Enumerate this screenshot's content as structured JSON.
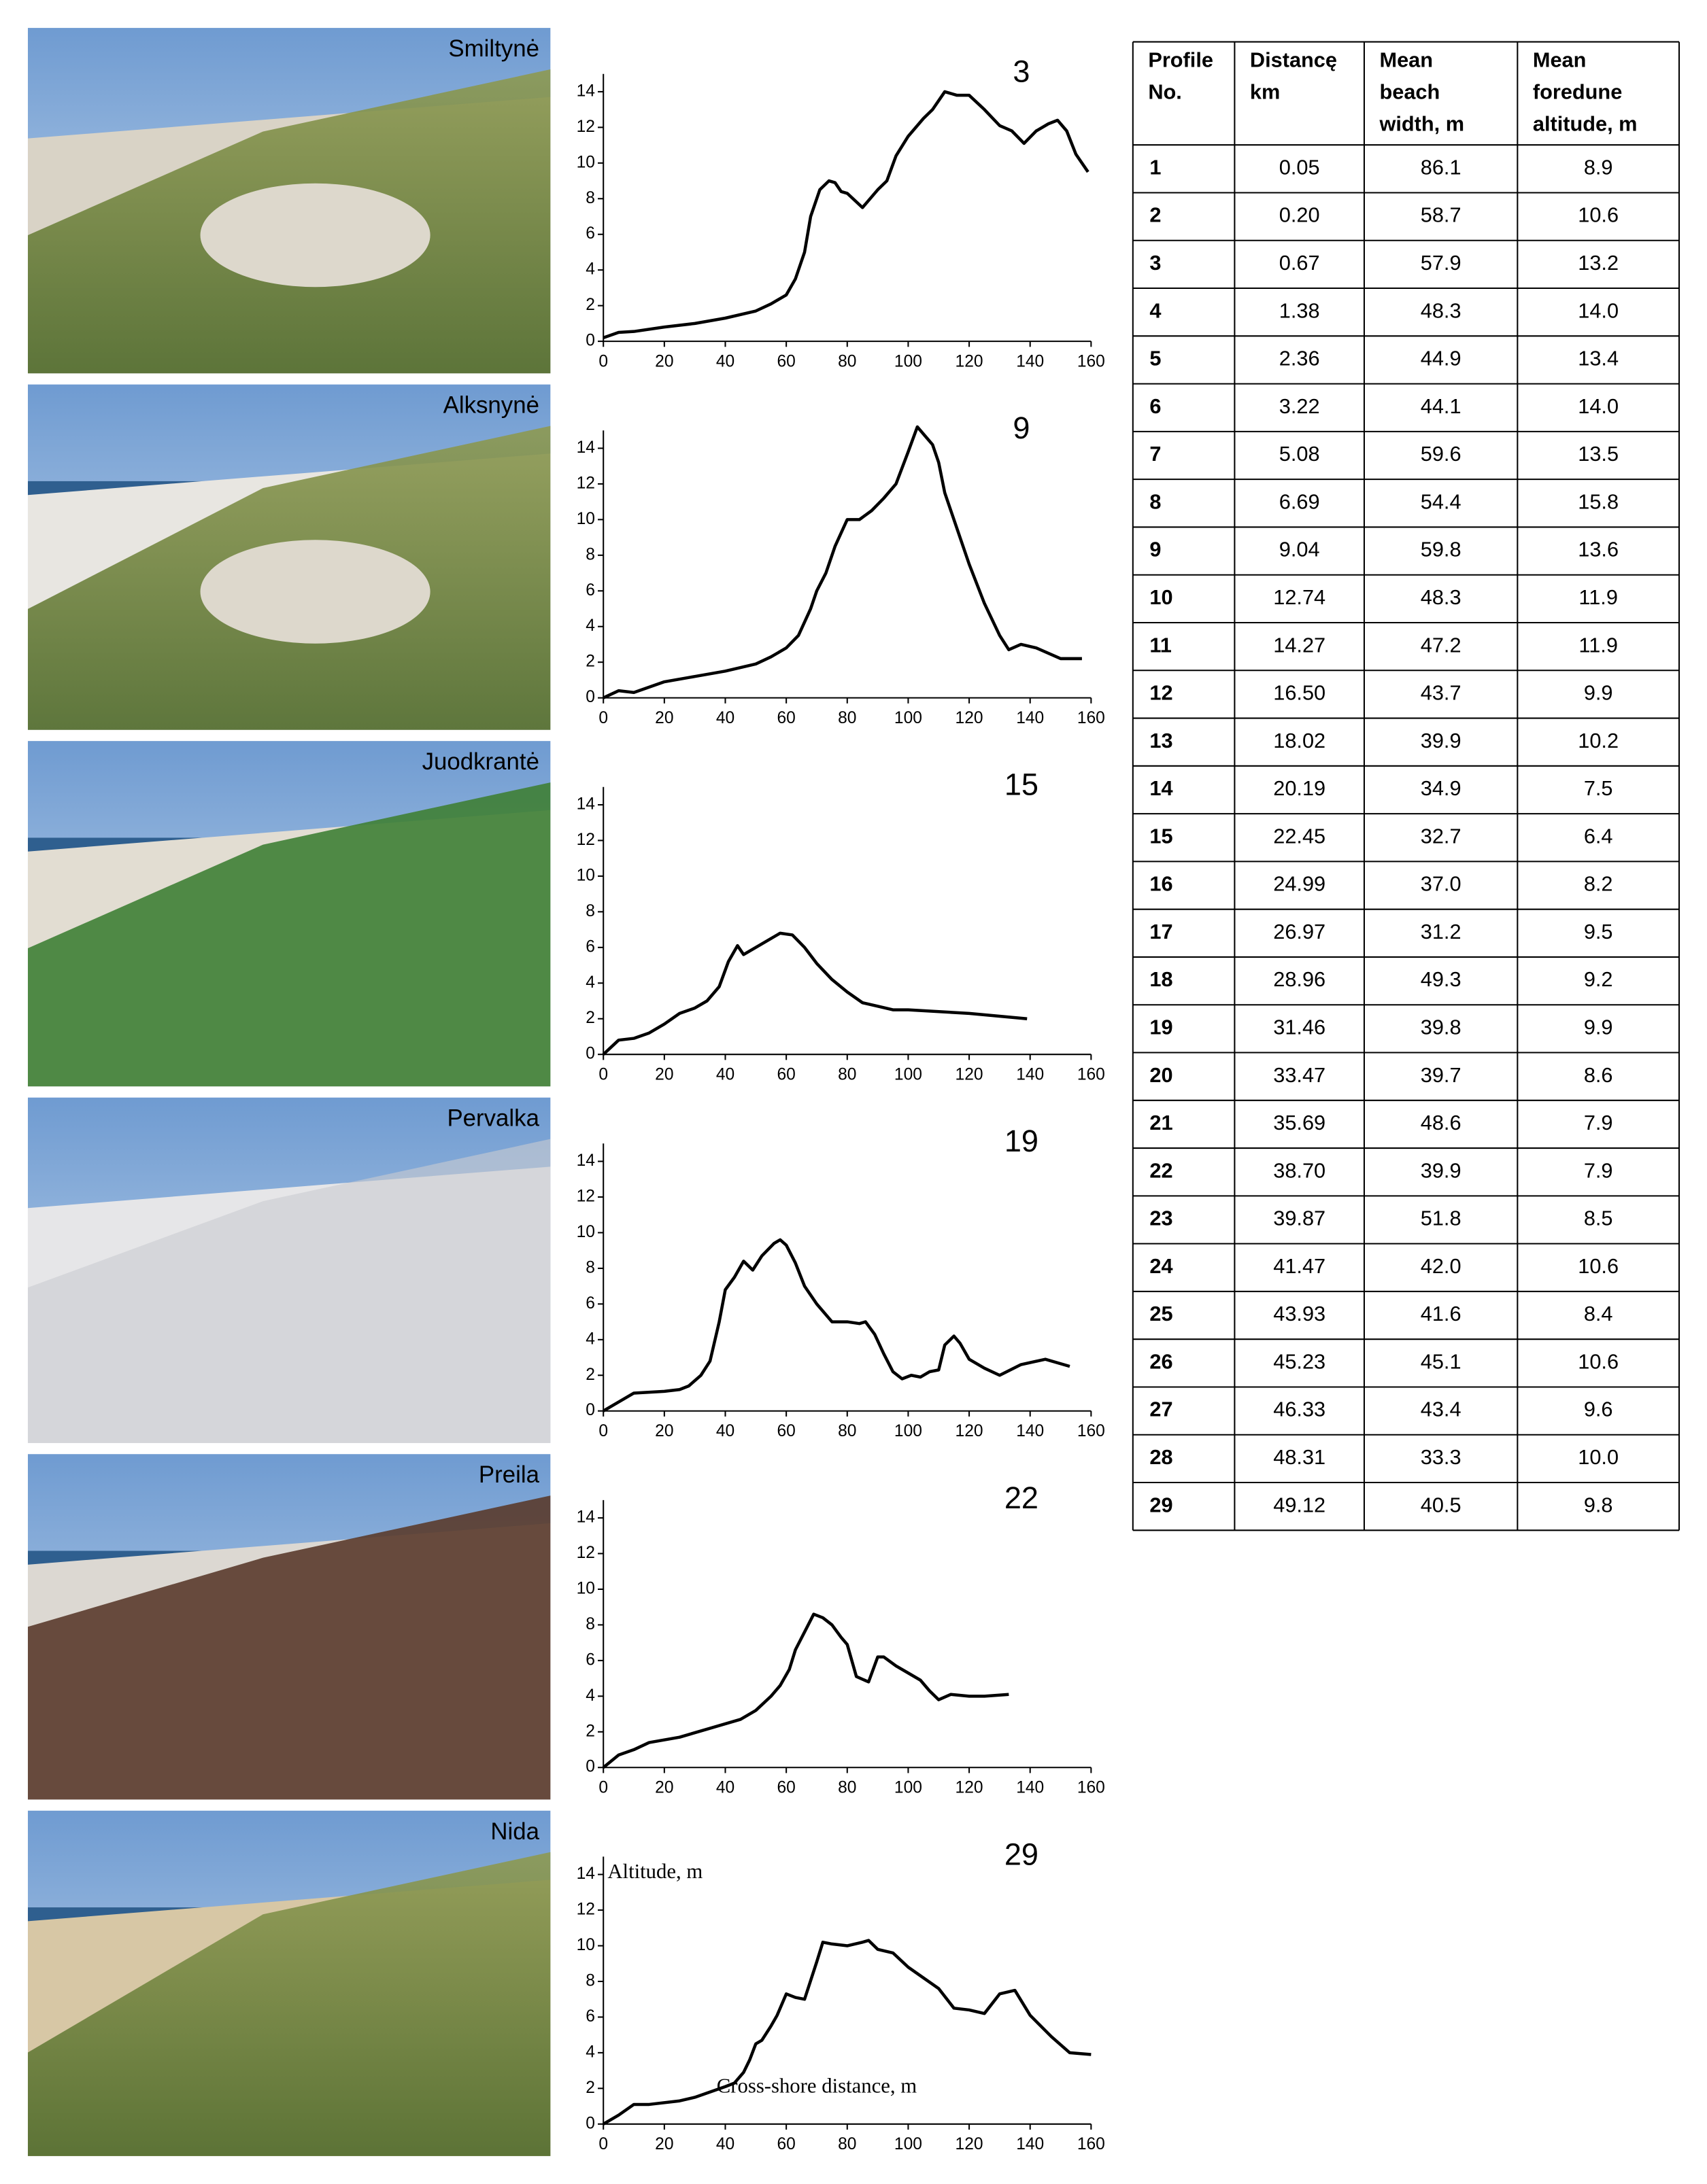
{
  "photos": [
    "Smiltynė",
    "Alksnynė",
    "Juodkrantė",
    "Pervalka",
    "Preila",
    "Nida"
  ],
  "chart_data": [
    {
      "type": "line",
      "title": "3",
      "color": "#000000",
      "xlim": [
        0,
        160
      ],
      "ylim": [
        0,
        15
      ],
      "xticks": [
        0,
        20,
        40,
        60,
        80,
        100,
        120,
        140,
        160
      ],
      "yticks": [
        0,
        2,
        4,
        6,
        8,
        10,
        12,
        14
      ],
      "x": [
        0,
        5,
        10,
        20,
        30,
        40,
        50,
        55,
        60,
        63,
        66,
        68,
        71,
        74,
        76,
        78,
        80,
        85,
        90,
        93,
        96,
        100,
        105,
        108,
        112,
        116,
        120,
        125,
        130,
        134,
        138,
        142,
        146,
        149,
        152,
        155,
        159
      ],
      "values": [
        0.2,
        0.5,
        0.55,
        0.8,
        1.0,
        1.3,
        1.7,
        2.1,
        2.6,
        3.5,
        5,
        7,
        8.5,
        9,
        8.9,
        8.4,
        8.3,
        7.5,
        8.5,
        9,
        10.4,
        11.5,
        12.5,
        13,
        14,
        13.8,
        13.8,
        13,
        12.1,
        11.8,
        11.1,
        11.8,
        12.2,
        12.4,
        11.8,
        10.5,
        9.5
      ]
    },
    {
      "type": "line",
      "title": "9",
      "color": "#000000",
      "xlim": [
        0,
        160
      ],
      "ylim": [
        0,
        15
      ],
      "xticks": [
        0,
        20,
        40,
        60,
        80,
        100,
        120,
        140,
        160
      ],
      "yticks": [
        0,
        2,
        4,
        6,
        8,
        10,
        12,
        14
      ],
      "x": [
        0,
        5,
        10,
        20,
        30,
        40,
        50,
        55,
        60,
        64,
        68,
        70,
        73,
        76,
        80,
        84,
        88,
        92,
        96,
        100,
        103,
        106,
        108,
        110,
        112,
        115,
        120,
        125,
        130,
        133,
        137,
        142,
        150,
        157
      ],
      "values": [
        0,
        0.4,
        0.3,
        0.9,
        1.2,
        1.5,
        1.9,
        2.3,
        2.8,
        3.5,
        5,
        6,
        7,
        8.5,
        10,
        10,
        10.5,
        11.2,
        12,
        13.8,
        15.2,
        14.6,
        14.2,
        13.2,
        11.5,
        10,
        7.5,
        5.3,
        3.5,
        2.7,
        3.0,
        2.8,
        2.2,
        2.2
      ]
    },
    {
      "type": "line",
      "title": "15",
      "color": "#000000",
      "xlim": [
        0,
        160
      ],
      "ylim": [
        0,
        15
      ],
      "xticks": [
        0,
        20,
        40,
        60,
        80,
        100,
        120,
        140,
        160
      ],
      "yticks": [
        0,
        2,
        4,
        6,
        8,
        10,
        12,
        14
      ],
      "x": [
        0,
        5,
        10,
        15,
        20,
        25,
        30,
        34,
        38,
        41,
        44,
        46,
        50,
        54,
        58,
        62,
        66,
        70,
        75,
        80,
        85,
        90,
        95,
        100,
        120,
        139
      ],
      "values": [
        0,
        0.8,
        0.9,
        1.2,
        1.7,
        2.3,
        2.6,
        3.0,
        3.8,
        5.2,
        6.1,
        5.6,
        6.0,
        6.4,
        6.8,
        6.7,
        6.0,
        5.1,
        4.2,
        3.5,
        2.9,
        2.7,
        2.5,
        2.5,
        2.3,
        2.0
      ]
    },
    {
      "type": "line",
      "title": "19",
      "color": "#000000",
      "xlim": [
        0,
        160
      ],
      "ylim": [
        0,
        15
      ],
      "xticks": [
        0,
        20,
        40,
        60,
        80,
        100,
        120,
        140,
        160
      ],
      "yticks": [
        0,
        2,
        4,
        6,
        8,
        10,
        12,
        14
      ],
      "x": [
        0,
        5,
        10,
        20,
        25,
        28,
        32,
        35,
        38,
        40,
        43,
        46,
        49,
        52,
        56,
        58,
        60,
        63,
        66,
        70,
        75,
        80,
        84,
        86,
        89,
        92,
        95,
        98,
        101,
        104,
        107,
        110,
        112,
        115,
        117,
        120,
        125,
        130,
        137,
        145,
        153
      ],
      "values": [
        0,
        0.5,
        1.0,
        1.1,
        1.2,
        1.4,
        2.0,
        2.8,
        5.0,
        6.8,
        7.5,
        8.4,
        7.9,
        8.7,
        9.4,
        9.6,
        9.3,
        8.3,
        7.0,
        6.0,
        5.0,
        5.0,
        4.9,
        5.0,
        4.3,
        3.2,
        2.2,
        1.8,
        2.0,
        1.9,
        2.2,
        2.3,
        3.7,
        4.2,
        3.8,
        2.9,
        2.4,
        2.0,
        2.6,
        2.9,
        2.5
      ]
    },
    {
      "type": "line",
      "title": "22",
      "color": "#000000",
      "xlim": [
        0,
        160
      ],
      "ylim": [
        0,
        15
      ],
      "xticks": [
        0,
        20,
        40,
        60,
        80,
        100,
        120,
        140,
        160
      ],
      "yticks": [
        0,
        2,
        4,
        6,
        8,
        10,
        12,
        14
      ],
      "x": [
        0,
        5,
        10,
        15,
        25,
        35,
        45,
        50,
        55,
        58,
        61,
        63,
        66,
        69,
        72,
        75,
        78,
        80,
        83,
        87,
        90,
        92,
        96,
        100,
        104,
        107,
        110,
        114,
        120,
        125,
        133
      ],
      "values": [
        0,
        0.7,
        1.0,
        1.4,
        1.7,
        2.2,
        2.7,
        3.2,
        4.0,
        4.6,
        5.5,
        6.6,
        7.6,
        8.6,
        8.4,
        8.0,
        7.3,
        6.9,
        5.1,
        4.8,
        6.2,
        6.2,
        5.7,
        5.3,
        4.9,
        4.3,
        3.8,
        4.1,
        4.0,
        4.0,
        4.1
      ]
    },
    {
      "type": "line",
      "title": "29",
      "color": "#000000",
      "xlim": [
        0,
        160
      ],
      "ylim": [
        0,
        15
      ],
      "x_label": "Cross-shore distance, m",
      "y_label": "Altitude, m",
      "xticks": [
        0,
        20,
        40,
        60,
        80,
        100,
        120,
        140,
        160
      ],
      "yticks": [
        0,
        2,
        4,
        6,
        8,
        10,
        12,
        14
      ],
      "x": [
        0,
        5,
        10,
        15,
        25,
        30,
        35,
        40,
        43,
        46,
        48,
        50,
        52,
        55,
        57,
        60,
        63,
        66,
        70,
        72,
        75,
        80,
        85,
        87,
        90,
        95,
        100,
        105,
        110,
        115,
        120,
        125,
        130,
        135,
        140,
        147,
        153,
        160
      ],
      "values": [
        0,
        0.5,
        1.1,
        1.1,
        1.3,
        1.5,
        1.8,
        2.1,
        2.3,
        2.9,
        3.6,
        4.5,
        4.7,
        5.5,
        6.1,
        7.3,
        7.1,
        7.0,
        9.1,
        10.2,
        10.1,
        10.0,
        10.2,
        10.3,
        9.8,
        9.6,
        8.8,
        8.2,
        7.6,
        6.5,
        6.4,
        6.2,
        7.3,
        7.5,
        6.1,
        4.9,
        4.0,
        3.9
      ]
    }
  ],
  "table": {
    "headers": [
      [
        "Profile",
        "No."
      ],
      [
        "Distancę",
        "km"
      ],
      [
        "Mean",
        "beach",
        "width, m"
      ],
      [
        "Mean",
        "foredune",
        "altitude, m"
      ]
    ],
    "rows": [
      [
        "1",
        "0.05",
        "86.1",
        "8.9"
      ],
      [
        "2",
        "0.20",
        "58.7",
        "10.6"
      ],
      [
        "3",
        "0.67",
        "57.9",
        "13.2"
      ],
      [
        "4",
        "1.38",
        "48.3",
        "14.0"
      ],
      [
        "5",
        "2.36",
        "44.9",
        "13.4"
      ],
      [
        "6",
        "3.22",
        "44.1",
        "14.0"
      ],
      [
        "7",
        "5.08",
        "59.6",
        "13.5"
      ],
      [
        "8",
        "6.69",
        "54.4",
        "15.8"
      ],
      [
        "9",
        "9.04",
        "59.8",
        "13.6"
      ],
      [
        "10",
        "12.74",
        "48.3",
        "11.9"
      ],
      [
        "11",
        "14.27",
        "47.2",
        "11.9"
      ],
      [
        "12",
        "16.50",
        "43.7",
        "9.9"
      ],
      [
        "13",
        "18.02",
        "39.9",
        "10.2"
      ],
      [
        "14",
        "20.19",
        "34.9",
        "7.5"
      ],
      [
        "15",
        "22.45",
        "32.7",
        "6.4"
      ],
      [
        "16",
        "24.99",
        "37.0",
        "8.2"
      ],
      [
        "17",
        "26.97",
        "31.2",
        "9.5"
      ],
      [
        "18",
        "28.96",
        "49.3",
        "9.2"
      ],
      [
        "19",
        "31.46",
        "39.8",
        "9.9"
      ],
      [
        "20",
        "33.47",
        "39.7",
        "8.6"
      ],
      [
        "21",
        "35.69",
        "48.6",
        "7.9"
      ],
      [
        "22",
        "38.70",
        "39.9",
        "7.9"
      ],
      [
        "23",
        "39.87",
        "51.8",
        "8.5"
      ],
      [
        "24",
        "41.47",
        "42.0",
        "10.6"
      ],
      [
        "25",
        "43.93",
        "41.6",
        "8.4"
      ],
      [
        "26",
        "45.23",
        "45.1",
        "10.6"
      ],
      [
        "27",
        "46.33",
        "43.4",
        "9.6"
      ],
      [
        "28",
        "48.31",
        "33.3",
        "10.0"
      ],
      [
        "29",
        "49.12",
        "40.5",
        "9.8"
      ]
    ]
  }
}
